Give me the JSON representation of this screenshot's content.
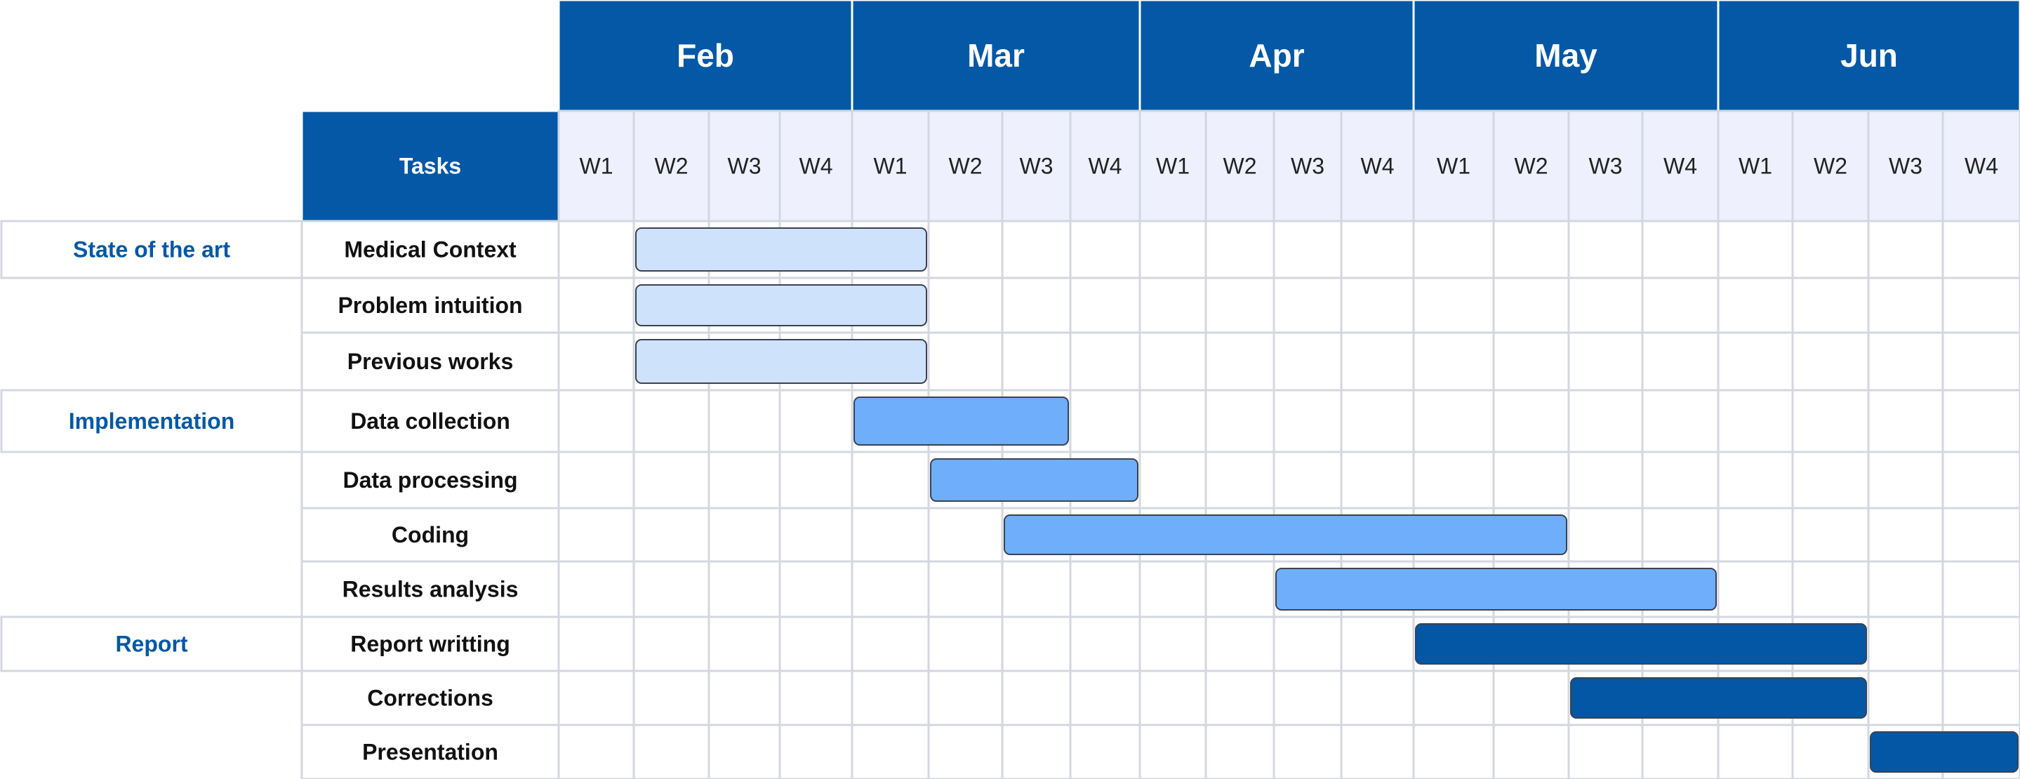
{
  "chart_data": {
    "type": "gantt",
    "title": "",
    "task_header": "Tasks",
    "months": [
      "Feb",
      "Mar",
      "Apr",
      "May",
      "Jun"
    ],
    "weeks": [
      "W1",
      "W2",
      "W3",
      "W4"
    ],
    "groups": [
      {
        "name": "State of the art",
        "tasks": [
          {
            "name": "Medical Context",
            "start": "Feb W2",
            "end": "Mar W1",
            "color": "#cfe2fc"
          },
          {
            "name": "Problem intuition",
            "start": "Feb W2",
            "end": "Mar W1",
            "color": "#cfe2fc"
          },
          {
            "name": "Previous works",
            "start": "Feb W2",
            "end": "Mar W1",
            "color": "#cfe2fc"
          }
        ]
      },
      {
        "name": "Implementation",
        "tasks": [
          {
            "name": "Data collection",
            "start": "Mar W1",
            "end": "Mar W3",
            "color": "#6eaefb"
          },
          {
            "name": "Data processing",
            "start": "Mar W2",
            "end": "Mar W4",
            "color": "#6eaefb"
          },
          {
            "name": "Coding",
            "start": "Mar W3",
            "end": "May W2",
            "color": "#6eaefb"
          },
          {
            "name": "Results analysis",
            "start": "Apr W3",
            "end": "May W4",
            "color": "#6eaefb"
          }
        ]
      },
      {
        "name": "Report",
        "tasks": [
          {
            "name": "Report writting",
            "start": "May W1",
            "end": "Jun W2",
            "color": "#0457a5"
          },
          {
            "name": "Corrections",
            "start": "May W3",
            "end": "Jun W2",
            "color": "#0457a5"
          },
          {
            "name": "Presentation",
            "start": "Jun W3",
            "end": "Jun W4",
            "color": "#0457a5"
          }
        ]
      }
    ],
    "colors": {
      "header_bg": "#0458a6",
      "header_text": "#ffffff",
      "week_bg": "#eef0fd",
      "grid_line": "#d3d7e0",
      "group_text": "#0458a6",
      "task_text": "#111111",
      "bar_border": "#3b4250"
    }
  }
}
